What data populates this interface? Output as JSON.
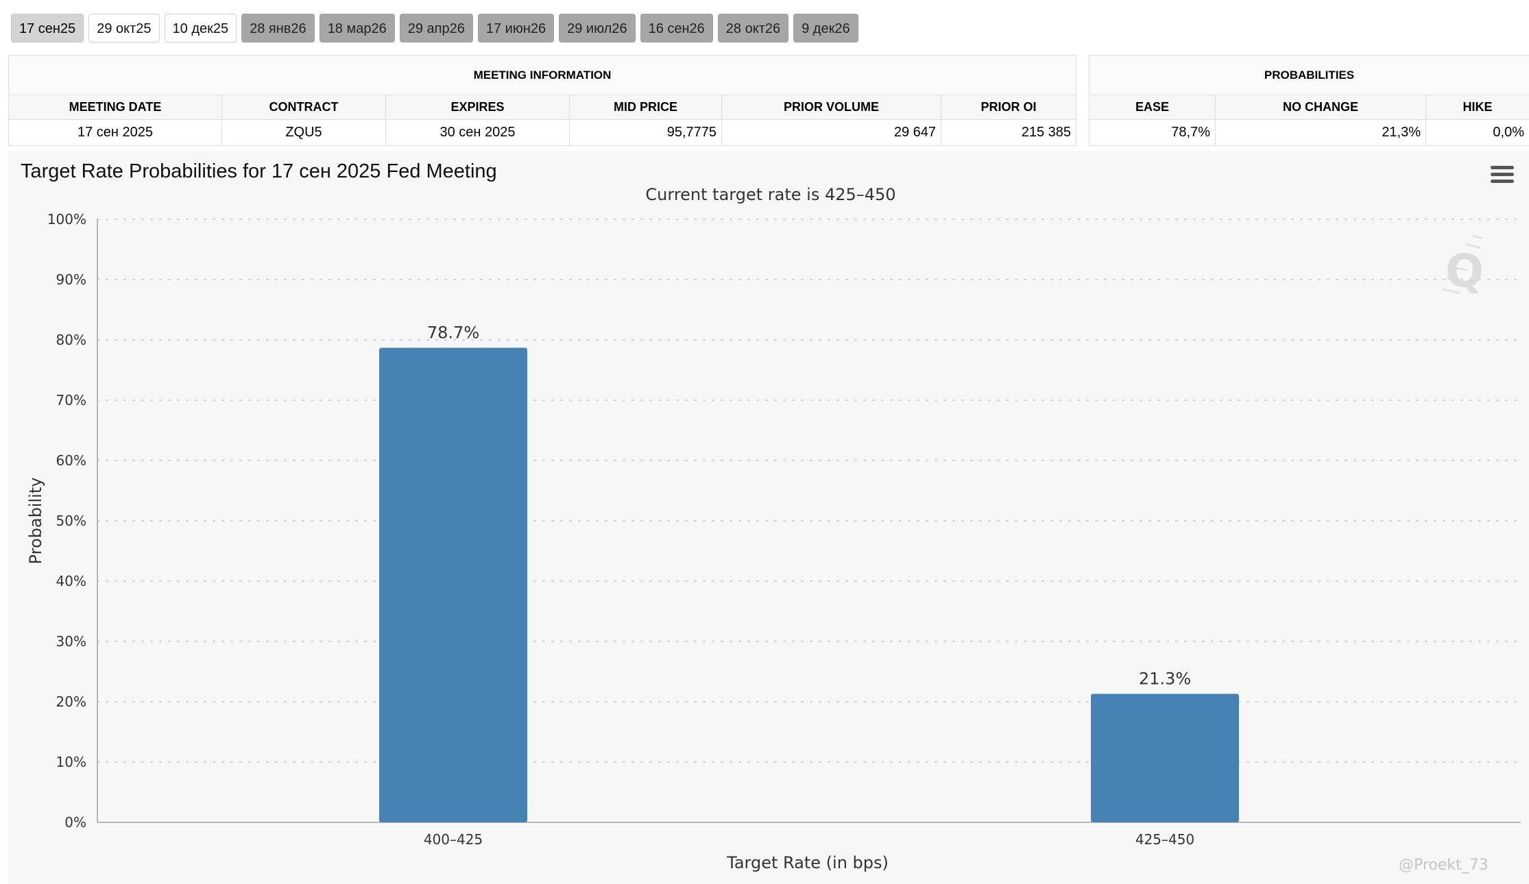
{
  "tabs": [
    {
      "label": "17 сен25",
      "state": "active"
    },
    {
      "label": "29 окт25",
      "state": "near"
    },
    {
      "label": "10 дек25",
      "state": "near"
    },
    {
      "label": "28 янв26",
      "state": "future"
    },
    {
      "label": "18 мар26",
      "state": "future"
    },
    {
      "label": "29 апр26",
      "state": "future"
    },
    {
      "label": "17 июн26",
      "state": "future"
    },
    {
      "label": "29 июл26",
      "state": "future"
    },
    {
      "label": "16 сен26",
      "state": "future"
    },
    {
      "label": "28 окт26",
      "state": "future"
    },
    {
      "label": "9 дек26",
      "state": "future"
    }
  ],
  "meeting_info": {
    "heading": "MEETING INFORMATION",
    "headers": [
      "MEETING DATE",
      "CONTRACT",
      "EXPIRES",
      "MID PRICE",
      "PRIOR VOLUME",
      "PRIOR OI"
    ],
    "row": [
      "17 сен 2025",
      "ZQU5",
      "30 сен 2025",
      "95,7775",
      "29 647",
      "215 385"
    ]
  },
  "probabilities": {
    "heading": "PROBABILITIES",
    "headers": [
      "EASE",
      "NO CHANGE",
      "HIKE"
    ],
    "row": [
      "78,7%",
      "21,3%",
      "0,0%"
    ]
  },
  "chart": {
    "title": "Target Rate Probabilities for 17 сен 2025 Fed Meeting",
    "bar_color": "#4682b4"
  },
  "chart_data": {
    "type": "bar",
    "subtitle": "Current target rate is 425–450",
    "categories": [
      "400–425",
      "425–450"
    ],
    "values": [
      78.7,
      21.3
    ],
    "data_labels": [
      "78.7%",
      "21.3%"
    ],
    "xlabel": "Target Rate (in bps)",
    "ylabel": "Probability",
    "ylim": [
      0,
      100
    ],
    "yticks": [
      "0%",
      "10%",
      "20%",
      "30%",
      "40%",
      "50%",
      "60%",
      "70%",
      "80%",
      "90%",
      "100%"
    ],
    "grid": true
  },
  "credit": "@Proekt_73"
}
